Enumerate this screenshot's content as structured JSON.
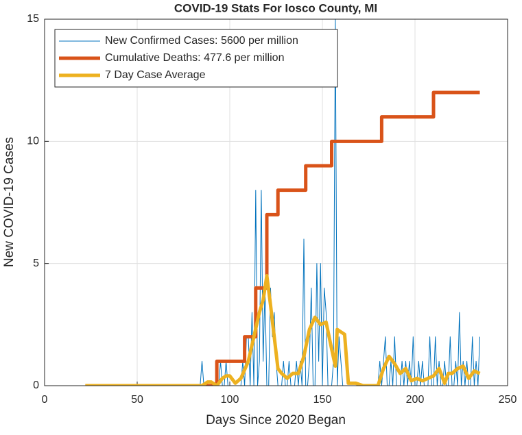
{
  "chart_data": {
    "type": "line",
    "title": "COVID-19 Stats For Iosco County, MI",
    "xlabel": "Days Since 2020 Began",
    "ylabel": "New COVID-19 Cases",
    "xlim": [
      0,
      250
    ],
    "xticks": [
      0,
      50,
      100,
      150,
      200,
      250
    ],
    "ylim": [
      0,
      15
    ],
    "yticks": [
      0,
      5,
      10,
      15
    ],
    "grid": true,
    "legend": "upper left",
    "series": [
      {
        "name": "New Confirmed Cases: 5600 per million",
        "color": "#0072bd",
        "width": 1,
        "x": [
          22,
          84,
          85,
          86,
          87,
          88,
          89,
          90,
          91,
          92,
          93,
          94,
          95,
          96,
          97,
          98,
          99,
          100,
          101,
          102,
          103,
          104,
          105,
          106,
          107,
          108,
          109,
          110,
          111,
          112,
          113,
          114,
          115,
          116,
          117,
          118,
          119,
          120,
          121,
          122,
          123,
          124,
          125,
          126,
          127,
          128,
          129,
          130,
          131,
          132,
          133,
          134,
          135,
          136,
          137,
          138,
          139,
          140,
          141,
          142,
          143,
          144,
          145,
          146,
          147,
          148,
          149,
          150,
          151,
          152,
          153,
          154,
          155,
          156,
          157,
          158,
          159,
          160,
          161,
          162,
          163,
          164,
          165,
          166,
          167,
          168,
          169,
          170,
          171,
          172,
          173,
          174,
          175,
          176,
          177,
          178,
          179,
          180,
          181,
          182,
          183,
          184,
          185,
          186,
          187,
          188,
          189,
          190,
          191,
          192,
          193,
          194,
          195,
          196,
          197,
          198,
          199,
          200,
          201,
          202,
          203,
          204,
          205,
          206,
          207,
          208,
          209,
          210,
          211,
          212,
          213,
          214,
          215,
          216,
          217,
          218,
          219,
          220,
          221,
          222,
          223,
          224,
          225,
          226,
          227,
          228,
          229,
          230,
          231,
          232,
          233,
          234,
          235
        ],
        "values": [
          0,
          0,
          1,
          0,
          0,
          0,
          0,
          0,
          0,
          0,
          0,
          0,
          1,
          0,
          0,
          1,
          0,
          0,
          0,
          0,
          0,
          0,
          0,
          0,
          1,
          0,
          2,
          2,
          0,
          3,
          0,
          8,
          0,
          1,
          8,
          1,
          4,
          0,
          0,
          4,
          2,
          3,
          1,
          0,
          0,
          0,
          1,
          0,
          0,
          1,
          0,
          0,
          0,
          1,
          0,
          1,
          0,
          6,
          0,
          0,
          1,
          4,
          0,
          0,
          5,
          1,
          5,
          0,
          4,
          3,
          0,
          0,
          0,
          1,
          15,
          0,
          2,
          1,
          0,
          0,
          0,
          0,
          0,
          0,
          0,
          0,
          0,
          0,
          0,
          0,
          0,
          0,
          0,
          0,
          0,
          0,
          0,
          0,
          1,
          0,
          1,
          2,
          0,
          0,
          1,
          0,
          2,
          0,
          0,
          0,
          1,
          0,
          1,
          0,
          1,
          0,
          2,
          0,
          0,
          1,
          0,
          1,
          0,
          0,
          0,
          2,
          0,
          0,
          2,
          0,
          1,
          0,
          0,
          1,
          0,
          0,
          2,
          0,
          0,
          1,
          0,
          3,
          0,
          1,
          0,
          1,
          0,
          0,
          2,
          0,
          1,
          0,
          2
        ]
      },
      {
        "name": "Cumulative Deaths: 477.6 per million",
        "color": "#d95319",
        "width": 5,
        "x": [
          22,
          93,
          93,
          108,
          108,
          114,
          114,
          120,
          120,
          126,
          126,
          141,
          141,
          155,
          155,
          182,
          182,
          210,
          210,
          235
        ],
        "values": [
          0,
          0,
          1,
          1,
          2,
          2,
          4,
          4,
          7,
          7,
          8,
          8,
          9,
          9,
          10,
          10,
          11,
          11,
          12,
          12
        ]
      },
      {
        "name": "7 Day Case Average",
        "color": "#edb120",
        "width": 5,
        "x": [
          22,
          85,
          88,
          90,
          93,
          96,
          98,
          100,
          103,
          106,
          110,
          113,
          116,
          118,
          120,
          122,
          124,
          126,
          128,
          131,
          134,
          137,
          140,
          143,
          146,
          149,
          152,
          155,
          157,
          158,
          160,
          162,
          164,
          168,
          172,
          176,
          180,
          183,
          186,
          189,
          192,
          195,
          198,
          201,
          204,
          207,
          210,
          213,
          216,
          218,
          220,
          223,
          226,
          229,
          232,
          235
        ],
        "values": [
          0,
          0,
          0.15,
          0.15,
          0,
          0.3,
          0.4,
          0.4,
          0.1,
          0.3,
          1,
          2,
          3,
          3.5,
          4.5,
          3.3,
          2,
          0.7,
          0.5,
          0.3,
          0.5,
          0.5,
          1.2,
          2.3,
          2.8,
          2.5,
          2.6,
          1.5,
          0.8,
          2.3,
          2.2,
          2.1,
          0.1,
          0.1,
          0,
          0,
          0,
          0.7,
          1.2,
          0.9,
          0.5,
          0.7,
          0.2,
          0.3,
          0.2,
          0.3,
          0.4,
          0.7,
          0.1,
          0.5,
          0.5,
          0.7,
          0.8,
          0.3,
          0.6,
          0.5
        ]
      }
    ]
  }
}
